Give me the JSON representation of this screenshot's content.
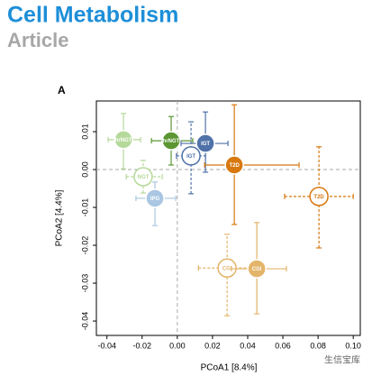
{
  "header": {
    "journal": "Cell Metabolism",
    "section": "Article"
  },
  "watermark": "生信宝库",
  "chart_data": {
    "type": "scatter",
    "panel": "A",
    "xlabel": "PCoA1 [8.4%]",
    "ylabel": "PCoA2 [4.4%]",
    "xlim": [
      -0.046,
      0.104
    ],
    "ylim": [
      -0.0438,
      0.0181
    ],
    "xticks": [
      -0.04,
      -0.02,
      {
        "value": 0,
        "label": "0.00"
      },
      0.02,
      0.04,
      0.06,
      0.08,
      {
        "value": 0.1,
        "label": "0.10"
      }
    ],
    "yticks": [
      0.01,
      {
        "value": 0,
        "label": "0.00"
      },
      -0.01,
      -0.02,
      -0.03,
      -0.04
    ],
    "ref_x": [
      0
    ],
    "ref_y": [
      0
    ],
    "series": [
      {
        "name": "hrNGT",
        "color": "#b5d99a",
        "filled": true,
        "x": -0.0306,
        "y": 0.0079,
        "x_low": -0.0393,
        "x_high": -0.0209,
        "y_low": 0.0002,
        "y_high": 0.0148
      },
      {
        "name": "hrNGT",
        "color": "#5b9632",
        "filled": true,
        "x": -0.0035,
        "y": 0.0076,
        "x_low": -0.0147,
        "x_high": 0.0088,
        "y_low": 0.0012,
        "y_high": 0.014
      },
      {
        "name": "IGT",
        "color": "#4f72a8",
        "filled": true,
        "x": 0.016,
        "y": 0.0069,
        "x_low": 0.0021,
        "x_high": 0.0288,
        "y_low": -0.0007,
        "y_high": 0.0152
      },
      {
        "name": "IGT",
        "color": "#4f72a8",
        "filled": false,
        "x": 0.0078,
        "y": 0.0036,
        "x_low": -0.0005,
        "x_high": 0.016,
        "y_low": -0.0064,
        "y_high": 0.0126
      },
      {
        "name": "T2D",
        "color": "#d7780f",
        "filled": true,
        "x": 0.0324,
        "y": 0.0012,
        "x_low": 0.0155,
        "x_high": 0.0692,
        "y_low": -0.0145,
        "y_high": 0.0171
      },
      {
        "name": "NGT",
        "color": "#b5d99a",
        "filled": false,
        "x": -0.0194,
        "y": -0.0019,
        "x_low": -0.029,
        "x_high": -0.0086,
        "y_low": -0.0062,
        "y_high": 0.0024
      },
      {
        "name": "IPG",
        "color": "#a9c6e2",
        "filled": true,
        "x": -0.0127,
        "y": -0.0076,
        "x_low": -0.0235,
        "x_high": -0.0009,
        "y_low": -0.0148,
        "y_high": -0.0033
      },
      {
        "name": "T2D",
        "color": "#d7780f",
        "filled": false,
        "x": 0.0805,
        "y": -0.0071,
        "x_low": 0.061,
        "x_high": 0.1,
        "y_low": -0.0207,
        "y_high": 0.006
      },
      {
        "name": "CGI",
        "color": "#e3b46a",
        "filled": false,
        "x": 0.0283,
        "y": -0.026,
        "x_low": 0.012,
        "x_high": 0.0452,
        "y_low": -0.0386,
        "y_high": -0.0171
      },
      {
        "name": "CGI",
        "color": "#e3b46a",
        "filled": true,
        "x": 0.0452,
        "y": -0.0262,
        "x_low": 0.0308,
        "x_high": 0.062,
        "y_low": -0.0381,
        "y_high": -0.014
      }
    ]
  }
}
